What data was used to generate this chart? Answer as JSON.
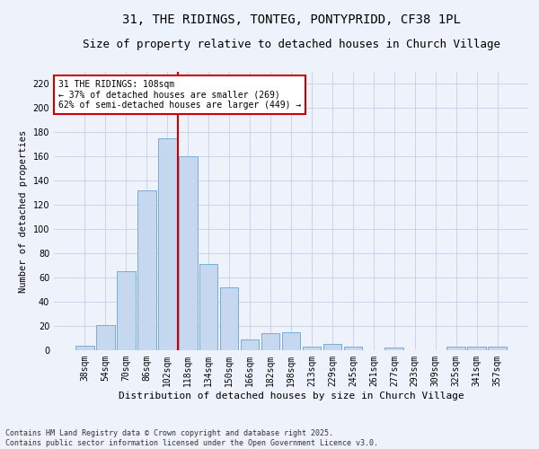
{
  "title": "31, THE RIDINGS, TONTEG, PONTYPRIDD, CF38 1PL",
  "subtitle": "Size of property relative to detached houses in Church Village",
  "xlabel": "Distribution of detached houses by size in Church Village",
  "ylabel": "Number of detached properties",
  "categories": [
    "38sqm",
    "54sqm",
    "70sqm",
    "86sqm",
    "102sqm",
    "118sqm",
    "134sqm",
    "150sqm",
    "166sqm",
    "182sqm",
    "198sqm",
    "213sqm",
    "229sqm",
    "245sqm",
    "261sqm",
    "277sqm",
    "293sqm",
    "309sqm",
    "325sqm",
    "341sqm",
    "357sqm"
  ],
  "values": [
    4,
    21,
    65,
    132,
    175,
    160,
    71,
    52,
    9,
    14,
    15,
    3,
    5,
    3,
    0,
    2,
    0,
    0,
    3,
    3,
    3
  ],
  "bar_color": "#c5d8f0",
  "bar_edge_color": "#7aadd4",
  "vline_color": "#cc0000",
  "annotation_text": "31 THE RIDINGS: 108sqm\n← 37% of detached houses are smaller (269)\n62% of semi-detached houses are larger (449) →",
  "annotation_box_color": "#ffffff",
  "annotation_box_edge": "#cc0000",
  "ylim": [
    0,
    230
  ],
  "yticks": [
    0,
    20,
    40,
    60,
    80,
    100,
    120,
    140,
    160,
    180,
    200,
    220
  ],
  "background_color": "#eef2fb",
  "grid_color": "#c8d0e8",
  "footer": "Contains HM Land Registry data © Crown copyright and database right 2025.\nContains public sector information licensed under the Open Government Licence v3.0.",
  "title_fontsize": 10,
  "subtitle_fontsize": 9,
  "xlabel_fontsize": 8,
  "ylabel_fontsize": 7.5,
  "tick_fontsize": 7,
  "annotation_fontsize": 7,
  "footer_fontsize": 6
}
